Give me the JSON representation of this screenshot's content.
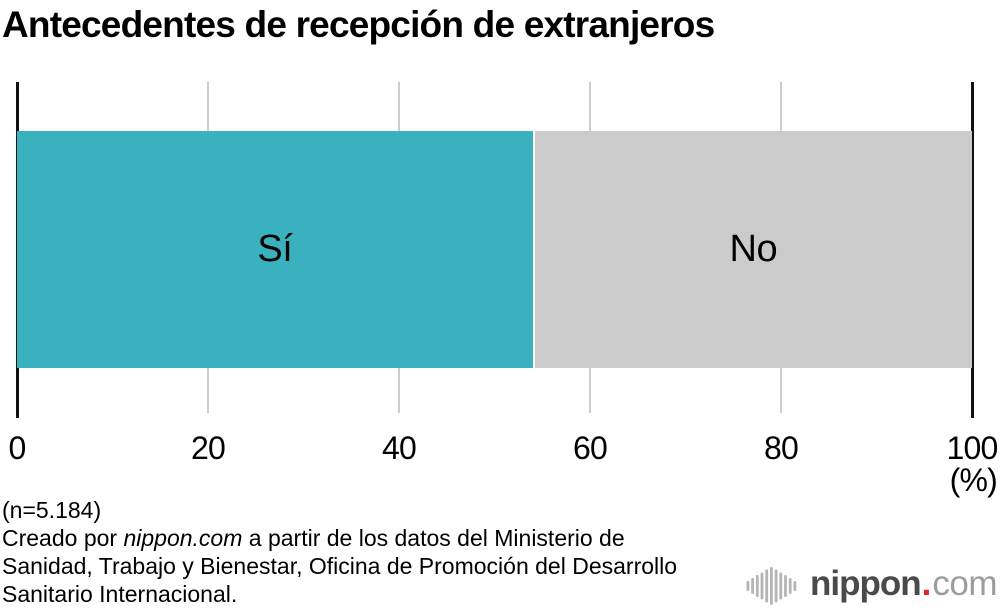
{
  "title": "Antecedentes de recepción de extranjeros",
  "chart_data": {
    "type": "bar",
    "orientation": "horizontal",
    "stacked": true,
    "title": "Antecedentes de recepción de extranjeros",
    "segments": [
      {
        "label": "Sí",
        "value": 54.2,
        "color": "#3ab1bf"
      },
      {
        "label": "No",
        "value": 45.8,
        "color": "#cbcbcb"
      }
    ],
    "xlim": [
      0,
      100
    ],
    "x_ticks": [
      0,
      20,
      40,
      60,
      80,
      100
    ],
    "x_unit": "(%)",
    "grid": true,
    "grid_color": "#cccccc",
    "axis_color": "#111111",
    "legend": "labels-inside-bar"
  },
  "footer": {
    "n_label": "(n=5.184)",
    "credit_lines": [
      [
        {
          "t": "Creado por ",
          "i": false
        },
        {
          "t": "nippon.com",
          "i": true
        },
        {
          "t": " a partir de los datos del Ministerio de",
          "i": false
        }
      ],
      [
        {
          "t": "Sanidad, Trabajo y Bienestar, Oficina de Promoción del Desarrollo",
          "i": false
        }
      ],
      [
        {
          "t": "Sanitario Internacional.",
          "i": false
        }
      ]
    ]
  },
  "logo": {
    "text_bold": "nippon",
    "dot": ".",
    "text_light": "com",
    "bold_color": "#4a4a4a",
    "light_color": "#9c9c9c",
    "dot_color": "#e5231f",
    "icon_color": "#b5b5b5"
  }
}
